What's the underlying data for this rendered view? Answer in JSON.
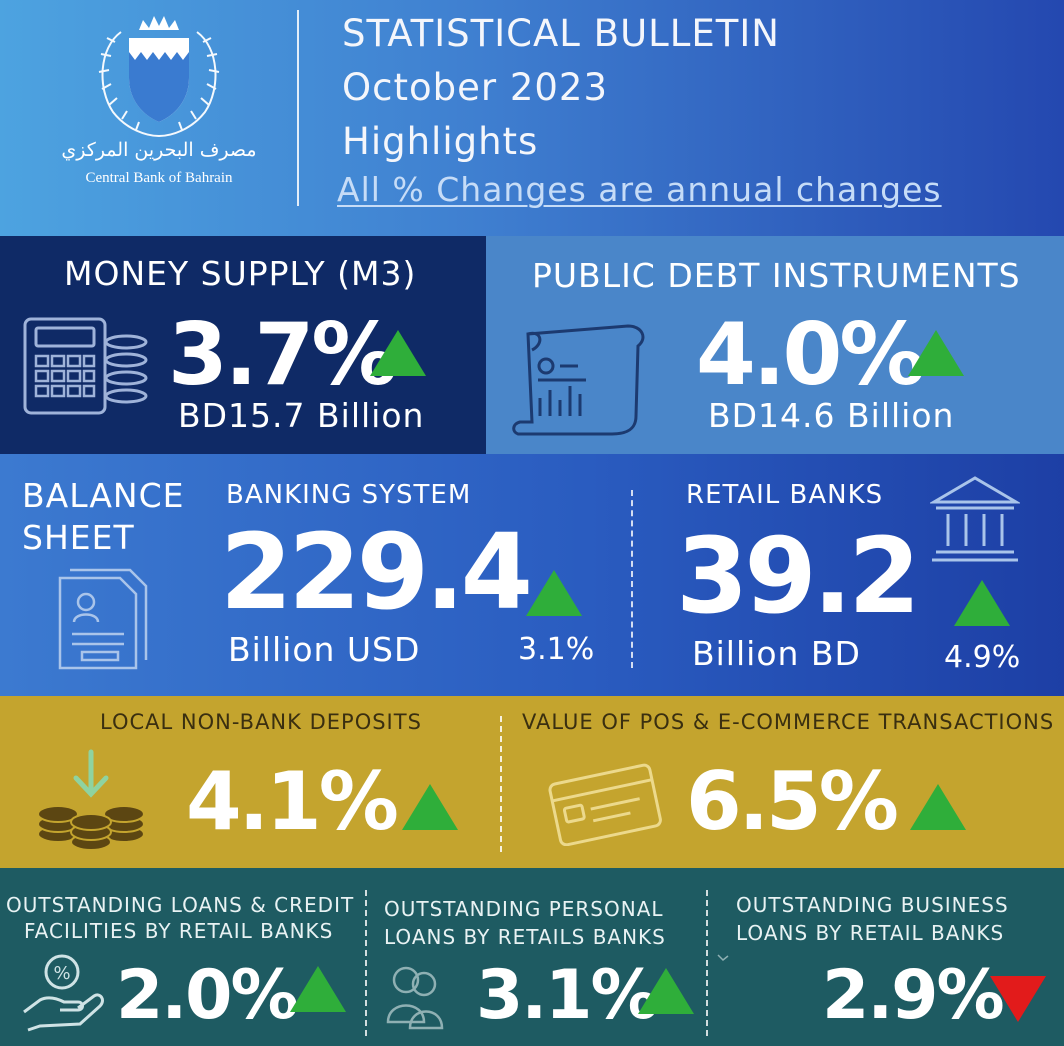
{
  "header": {
    "org_name_en": "Central Bank of Bahrain",
    "org_name_ar": "مصرف البحرين المركزي",
    "title": "STATISTICAL BULLETIN",
    "month": "October 2023",
    "subtitle": "Highlights",
    "note": "All % Changes are annual changes"
  },
  "colors": {
    "up": "#2fae3a",
    "down": "#e21b1b",
    "navy": "#0f2a66",
    "gold": "#c4a42e",
    "teal": "#1e5b62"
  },
  "money_supply": {
    "title": "MONEY SUPPLY (M3)",
    "change": "3.7%",
    "value": "BD15.7 Billion",
    "trend": "up",
    "icon": "calculator-coins-icon"
  },
  "public_debt": {
    "title": "PUBLIC DEBT INSTRUMENTS",
    "change": "4.0%",
    "value": "BD14.6 Billion",
    "trend": "up",
    "icon": "document-chart-icon"
  },
  "balance_sheet": {
    "title_line1": "BALANCE",
    "title_line2": "SHEET",
    "icon": "balance-sheet-document-icon",
    "banking_system": {
      "title": "BANKING SYSTEM",
      "value": "229.4",
      "unit": "Billion USD",
      "change": "3.1%",
      "trend": "up"
    },
    "retail_banks": {
      "title": "RETAIL BANKS",
      "value": "39.2",
      "unit": "Billion BD",
      "change": "4.9%",
      "trend": "up",
      "icon": "bank-building-icon"
    }
  },
  "deposits": {
    "title": "LOCAL NON-BANK DEPOSITS",
    "change": "4.1%",
    "trend": "up",
    "icon": "coins-deposit-icon"
  },
  "pos": {
    "title": "VALUE OF POS & E-COMMERCE TRANSACTIONS",
    "change": "6.5%",
    "trend": "up",
    "icon": "credit-card-icon"
  },
  "loans": [
    {
      "title_line1": "OUTSTANDING LOANS & CREDIT",
      "title_line2": "FACILITIES BY RETAIL BANKS",
      "change": "2.0%",
      "trend": "up",
      "icon": "hand-percent-icon"
    },
    {
      "title_line1": "OUTSTANDING PERSONAL",
      "title_line2": "LOANS BY RETAILS BANKS",
      "change": "3.1%",
      "trend": "up",
      "icon": "people-icon"
    },
    {
      "title_line1": "OUTSTANDING BUSINESS",
      "title_line2": "LOANS BY RETAIL BANKS",
      "change": "2.9%",
      "trend": "down",
      "icon": "business-icon"
    }
  ]
}
